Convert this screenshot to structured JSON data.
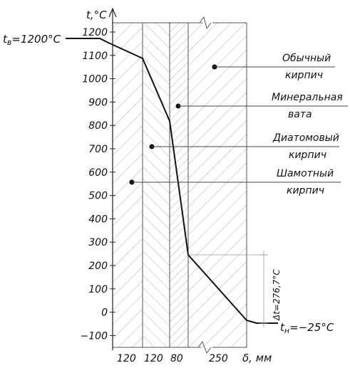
{
  "axis": {
    "y_title": "t,°C",
    "x_title": "δ, мм",
    "y_ticks": [
      "1200",
      "1100",
      "1000",
      "900",
      "800",
      "700",
      "600",
      "500",
      "400",
      "300",
      "200",
      "100",
      "0",
      "−100"
    ]
  },
  "layers": [
    {
      "material_line1": "Шамотный",
      "material_line2": "кирпич",
      "thickness": "120"
    },
    {
      "material_line1": "Диатомовый",
      "material_line2": "кирпич",
      "thickness": "120"
    },
    {
      "material_line1": "Минеральная",
      "material_line2": "вата",
      "thickness": "80"
    },
    {
      "material_line1": "Обычный",
      "material_line2": "кирпич",
      "thickness": "250"
    }
  ],
  "inner_temperature": "t",
  "inner_temperature_sub": "в",
  "inner_temperature_value": "=1200°C",
  "outer_temperature": "t",
  "outer_temperature_sub": "н",
  "outer_temperature_value": "=−25°C",
  "delta_label": "Δt=276,7°C"
}
